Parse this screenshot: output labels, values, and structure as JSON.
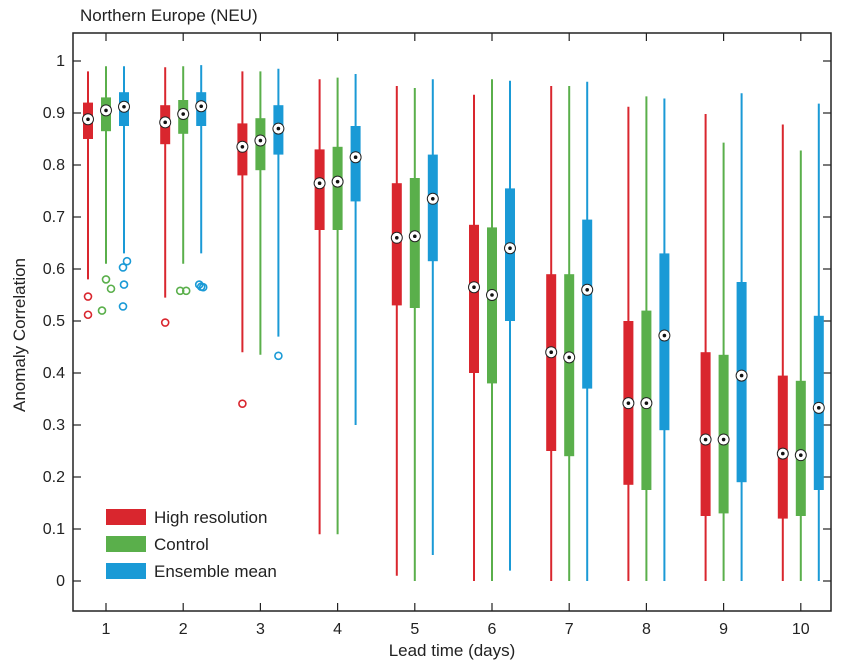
{
  "chart_data": {
    "type": "boxplot",
    "title": "Northern Europe (NEU)",
    "xlabel": "Lead time (days)",
    "ylabel": "Anomaly Correlation",
    "categories": [
      "1",
      "2",
      "3",
      "4",
      "5",
      "6",
      "7",
      "8",
      "9",
      "10"
    ],
    "ylim": [
      0,
      1
    ],
    "yticks": [
      "0",
      "0.1",
      "0.2",
      "0.3",
      "0.4",
      "0.5",
      "0.6",
      "0.7",
      "0.8",
      "0.9",
      "1"
    ],
    "grid": false,
    "legend_position": "bottom-left",
    "series": [
      {
        "name": "High resolution",
        "color": "#d9262e",
        "whisker_low": [
          0.58,
          0.545,
          0.44,
          0.09,
          0.01,
          0.0,
          0.0,
          0.0,
          0.0,
          0.0
        ],
        "q1": [
          0.85,
          0.84,
          0.78,
          0.675,
          0.53,
          0.4,
          0.25,
          0.185,
          0.125,
          0.12
        ],
        "median": [
          0.888,
          0.882,
          0.835,
          0.765,
          0.66,
          0.565,
          0.44,
          0.342,
          0.272,
          0.245
        ],
        "q3": [
          0.92,
          0.915,
          0.88,
          0.83,
          0.765,
          0.685,
          0.59,
          0.5,
          0.44,
          0.395
        ],
        "whisker_high": [
          0.98,
          0.988,
          0.98,
          0.965,
          0.952,
          0.935,
          0.952,
          0.912,
          0.898,
          0.878
        ],
        "outliers": [
          [
            0.547,
            0.512
          ],
          [
            0.497
          ],
          [
            0.341
          ],
          [],
          [],
          [],
          [],
          [],
          [],
          []
        ]
      },
      {
        "name": "Control",
        "color": "#5aaf4b",
        "whisker_low": [
          0.61,
          0.61,
          0.435,
          0.09,
          0.0,
          0.0,
          0.0,
          0.0,
          0.0,
          0.0
        ],
        "q1": [
          0.865,
          0.86,
          0.79,
          0.675,
          0.525,
          0.38,
          0.24,
          0.175,
          0.13,
          0.125
        ],
        "median": [
          0.905,
          0.898,
          0.847,
          0.768,
          0.663,
          0.55,
          0.43,
          0.342,
          0.272,
          0.242
        ],
        "q3": [
          0.93,
          0.925,
          0.89,
          0.835,
          0.775,
          0.68,
          0.59,
          0.52,
          0.435,
          0.385
        ],
        "whisker_high": [
          0.99,
          0.99,
          0.98,
          0.968,
          0.948,
          0.965,
          0.952,
          0.932,
          0.843,
          0.828
        ],
        "outliers": [
          [
            0.58,
            0.562,
            0.52
          ],
          [
            0.558,
            0.558
          ],
          [],
          [],
          [],
          [],
          [],
          [],
          [],
          []
        ],
        "outliers_dx": [
          [
            0,
            5,
            -4
          ],
          [
            -3,
            3
          ],
          [],
          [],
          [],
          [],
          [],
          [],
          [],
          []
        ]
      },
      {
        "name": "Ensemble mean",
        "color": "#1a9ad6",
        "whisker_low": [
          0.63,
          0.63,
          0.47,
          0.3,
          0.05,
          0.02,
          0.0,
          0.0,
          0.0,
          0.0
        ],
        "q1": [
          0.875,
          0.875,
          0.82,
          0.73,
          0.615,
          0.5,
          0.37,
          0.29,
          0.19,
          0.175
        ],
        "median": [
          0.912,
          0.913,
          0.87,
          0.815,
          0.735,
          0.64,
          0.56,
          0.472,
          0.395,
          0.333
        ],
        "q3": [
          0.94,
          0.94,
          0.915,
          0.875,
          0.82,
          0.755,
          0.695,
          0.63,
          0.575,
          0.51
        ],
        "whisker_high": [
          0.99,
          0.992,
          0.985,
          0.975,
          0.965,
          0.962,
          0.96,
          0.928,
          0.938,
          0.918
        ],
        "outliers": [
          [
            0.615,
            0.603,
            0.57,
            0.528
          ],
          [
            0.57,
            0.566,
            0.565
          ],
          [
            0.433
          ],
          [],
          [],
          [],
          [],
          [],
          [],
          []
        ],
        "outliers_dx": [
          [
            3,
            -1,
            0,
            -1
          ],
          [
            -2,
            0,
            2
          ],
          [
            0
          ],
          [],
          [],
          [],
          [],
          [],
          [],
          []
        ]
      }
    ]
  }
}
